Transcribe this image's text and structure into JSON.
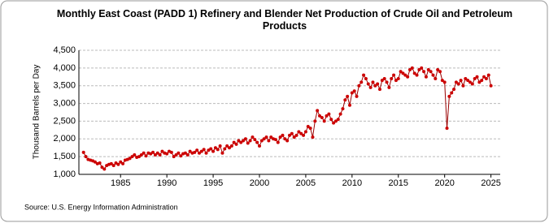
{
  "chart_data": {
    "type": "line",
    "title": "Monthly East Coast (PADD 1) Refinery and Blender Net Production of Crude Oil and Petroleum Products",
    "y_label": "Thousand Barrels per Day",
    "source": "Source: U.S. Energy Information Administration",
    "x": [
      1981,
      1981.25,
      1981.5,
      1981.75,
      1982,
      1982.25,
      1982.5,
      1982.75,
      1983,
      1983.25,
      1983.5,
      1983.75,
      1984,
      1984.25,
      1984.5,
      1984.75,
      1985,
      1985.25,
      1985.5,
      1985.75,
      1986,
      1986.25,
      1986.5,
      1986.75,
      1987,
      1987.25,
      1987.5,
      1987.75,
      1988,
      1988.25,
      1988.5,
      1988.75,
      1989,
      1989.25,
      1989.5,
      1989.75,
      1990,
      1990.25,
      1990.5,
      1990.75,
      1991,
      1991.25,
      1991.5,
      1991.75,
      1992,
      1992.25,
      1992.5,
      1992.75,
      1993,
      1993.25,
      1993.5,
      1993.75,
      1994,
      1994.25,
      1994.5,
      1994.75,
      1995,
      1995.25,
      1995.5,
      1995.75,
      1996,
      1996.25,
      1996.5,
      1996.75,
      1997,
      1997.25,
      1997.5,
      1997.75,
      1998,
      1998.25,
      1998.5,
      1998.75,
      1999,
      1999.25,
      1999.5,
      1999.75,
      2000,
      2000.25,
      2000.5,
      2000.75,
      2001,
      2001.25,
      2001.5,
      2001.75,
      2002,
      2002.25,
      2002.5,
      2002.75,
      2003,
      2003.25,
      2003.5,
      2003.75,
      2004,
      2004.25,
      2004.5,
      2004.75,
      2005,
      2005.25,
      2005.5,
      2005.75,
      2006,
      2006.25,
      2006.5,
      2006.75,
      2007,
      2007.25,
      2007.5,
      2007.75,
      2008,
      2008.25,
      2008.5,
      2008.75,
      2009,
      2009.25,
      2009.5,
      2009.75,
      2010,
      2010.25,
      2010.5,
      2010.75,
      2011,
      2011.25,
      2011.5,
      2011.75,
      2012,
      2012.25,
      2012.5,
      2012.75,
      2013,
      2013.25,
      2013.5,
      2013.75,
      2014,
      2014.25,
      2014.5,
      2014.75,
      2015,
      2015.25,
      2015.5,
      2015.75,
      2016,
      2016.25,
      2016.5,
      2016.75,
      2017,
      2017.25,
      2017.5,
      2017.75,
      2018,
      2018.25,
      2018.5,
      2018.75,
      2019,
      2019.25,
      2019.5,
      2019.75,
      2020,
      2020.25,
      2020.5,
      2020.75,
      2021,
      2021.25,
      2021.5,
      2021.75,
      2022,
      2022.25,
      2022.5,
      2022.75,
      2023,
      2023.25,
      2023.5,
      2023.75,
      2024,
      2024.25,
      2024.5,
      2024.75,
      2025
    ],
    "series": [
      {
        "color": "#cc0000",
        "values": [
          1620,
          1500,
          1420,
          1400,
          1380,
          1350,
          1300,
          1320,
          1200,
          1150,
          1250,
          1280,
          1300,
          1250,
          1320,
          1280,
          1350,
          1300,
          1400,
          1420,
          1450,
          1500,
          1550,
          1480,
          1500,
          1550,
          1600,
          1520,
          1600,
          1580,
          1620,
          1550,
          1600,
          1550,
          1650,
          1600,
          1580,
          1650,
          1620,
          1500,
          1550,
          1600,
          1520,
          1580,
          1600,
          1550,
          1650,
          1600,
          1620,
          1680,
          1600,
          1650,
          1700,
          1600,
          1680,
          1720,
          1650,
          1750,
          1700,
          1800,
          1600,
          1720,
          1800,
          1750,
          1800,
          1900,
          1850,
          1950,
          1900,
          1950,
          2000,
          1880,
          1950,
          2050,
          1980,
          1900,
          1800,
          1950,
          2000,
          2050,
          1950,
          2050,
          2000,
          1980,
          1900,
          2050,
          2100,
          2000,
          1950,
          2100,
          2150,
          2050,
          2100,
          2200,
          2150,
          2100,
          2200,
          2350,
          2300,
          2050,
          2500,
          2800,
          2650,
          2600,
          2500,
          2650,
          2700,
          2550,
          2450,
          2500,
          2550,
          2700,
          2850,
          3100,
          3200,
          2950,
          3300,
          3350,
          3200,
          3500,
          3600,
          3800,
          3700,
          3550,
          3450,
          3600,
          3500,
          3550,
          3400,
          3650,
          3700,
          3600,
          3450,
          3700,
          3800,
          3650,
          3700,
          3900,
          3850,
          3800,
          3750,
          3950,
          4000,
          3850,
          3800,
          3950,
          4000,
          3900,
          3750,
          3950,
          3900,
          3800,
          3700,
          3950,
          3900,
          3650,
          3600,
          2300,
          3200,
          3300,
          3400,
          3600,
          3550,
          3650,
          3500,
          3700,
          3650,
          3600,
          3550,
          3700,
          3750,
          3600,
          3650,
          3750,
          3700,
          3800,
          3500
        ]
      }
    ],
    "xlim": [
      1980.5,
      2026
    ],
    "xticks": [
      1985,
      1990,
      1995,
      2000,
      2005,
      2010,
      2015,
      2020,
      2025
    ],
    "ylim": [
      1000,
      4500
    ],
    "yticks": [
      {
        "value": 1000,
        "label": "1,000"
      },
      {
        "value": 1500,
        "label": "1,500"
      },
      {
        "value": 2000,
        "label": "2,000"
      },
      {
        "value": 2500,
        "label": "2,500"
      },
      {
        "value": 3000,
        "label": "3,000"
      },
      {
        "value": 3500,
        "label": "3,500"
      },
      {
        "value": 4000,
        "label": "4,000"
      },
      {
        "value": 4500,
        "label": "4,500"
      }
    ],
    "grid": true,
    "line_color": "#990000"
  }
}
